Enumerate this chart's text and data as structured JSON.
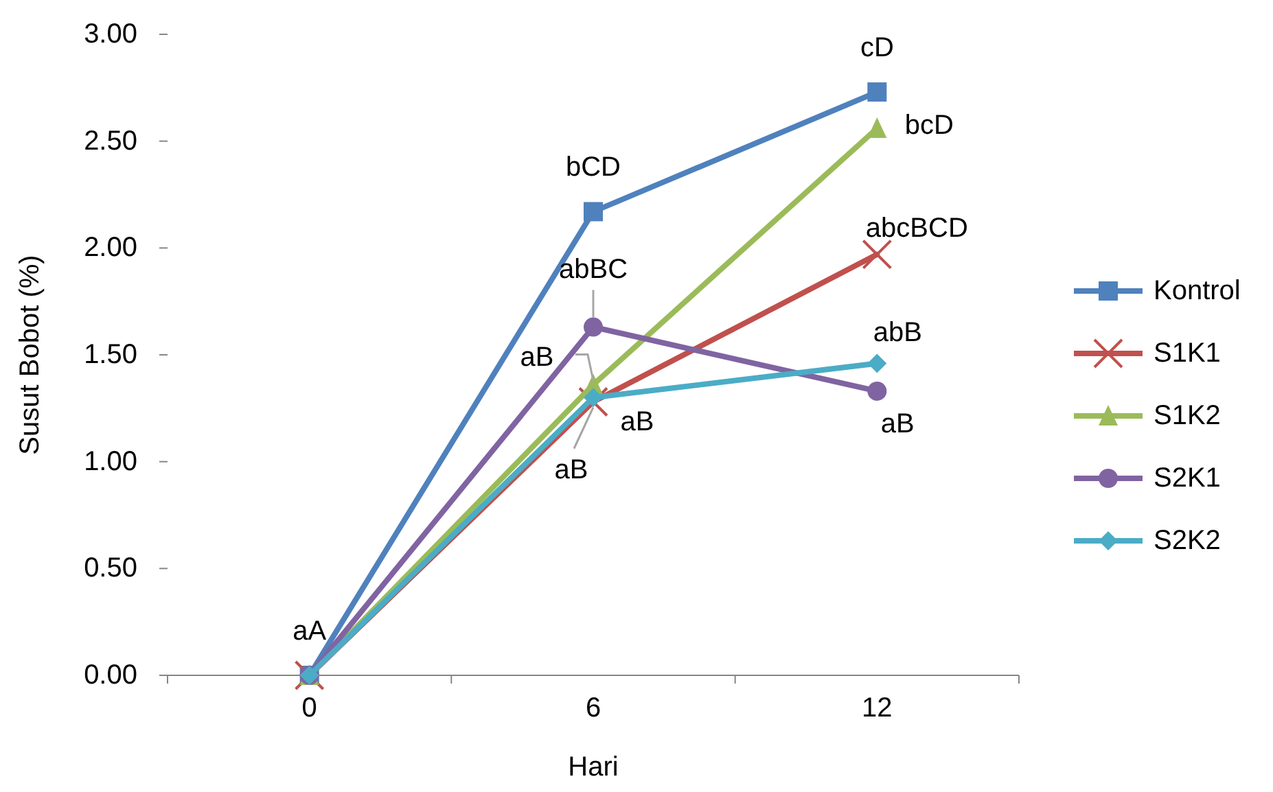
{
  "chart_data": {
    "type": "line",
    "xlabel": "Hari",
    "ylabel": "Susut Bobot (%)",
    "categories": [
      "0",
      "6",
      "12"
    ],
    "ylim": [
      0,
      3
    ],
    "yticks": [
      {
        "value": 0,
        "label": "0.00"
      },
      {
        "value": 0.5,
        "label": "0.50"
      },
      {
        "value": 1,
        "label": "1.00"
      },
      {
        "value": 1.5,
        "label": "1.50"
      },
      {
        "value": 2,
        "label": "2.00"
      },
      {
        "value": 2.5,
        "label": "2.50"
      },
      {
        "value": 3,
        "label": "3.00"
      }
    ],
    "grid": false,
    "legend": "right",
    "line_style": "solid",
    "series": [
      {
        "name": "Kontrol",
        "color": "#4f81bd",
        "marker": "square",
        "values": [
          0,
          2.17,
          2.73
        ]
      },
      {
        "name": "S1K1",
        "color": "#c0504d",
        "marker": "cross",
        "values": [
          0,
          1.28,
          1.97
        ]
      },
      {
        "name": "S1K2",
        "color": "#9bbb59",
        "marker": "triangle",
        "values": [
          0,
          1.36,
          2.56
        ]
      },
      {
        "name": "S2K1",
        "color": "#8064a2",
        "marker": "circle",
        "values": [
          0,
          1.63,
          1.33
        ]
      },
      {
        "name": "S2K2",
        "color": "#4bacc6",
        "marker": "diamond",
        "values": [
          0,
          1.3,
          1.46
        ]
      }
    ],
    "annotations": [
      {
        "text": "aA",
        "x": "0",
        "y": 0
      },
      {
        "text": "bCD",
        "x": "6",
        "y": 2.17
      },
      {
        "text": "cD",
        "x": "12",
        "y": 2.73
      },
      {
        "text": "bcD",
        "x": "12",
        "y": 2.56
      },
      {
        "text": "abcBCD",
        "x": "12",
        "y": 1.97
      },
      {
        "text": "abBC",
        "x": "6",
        "y": 1.63
      },
      {
        "text": "aB",
        "x": "6",
        "y": 1.36
      },
      {
        "text": "aB",
        "x": "6",
        "y": 1.3
      },
      {
        "text": "aB",
        "x": "6",
        "y": 1.28
      },
      {
        "text": "abB",
        "x": "12",
        "y": 1.46
      },
      {
        "text": "aB",
        "x": "12",
        "y": 1.33
      }
    ]
  }
}
